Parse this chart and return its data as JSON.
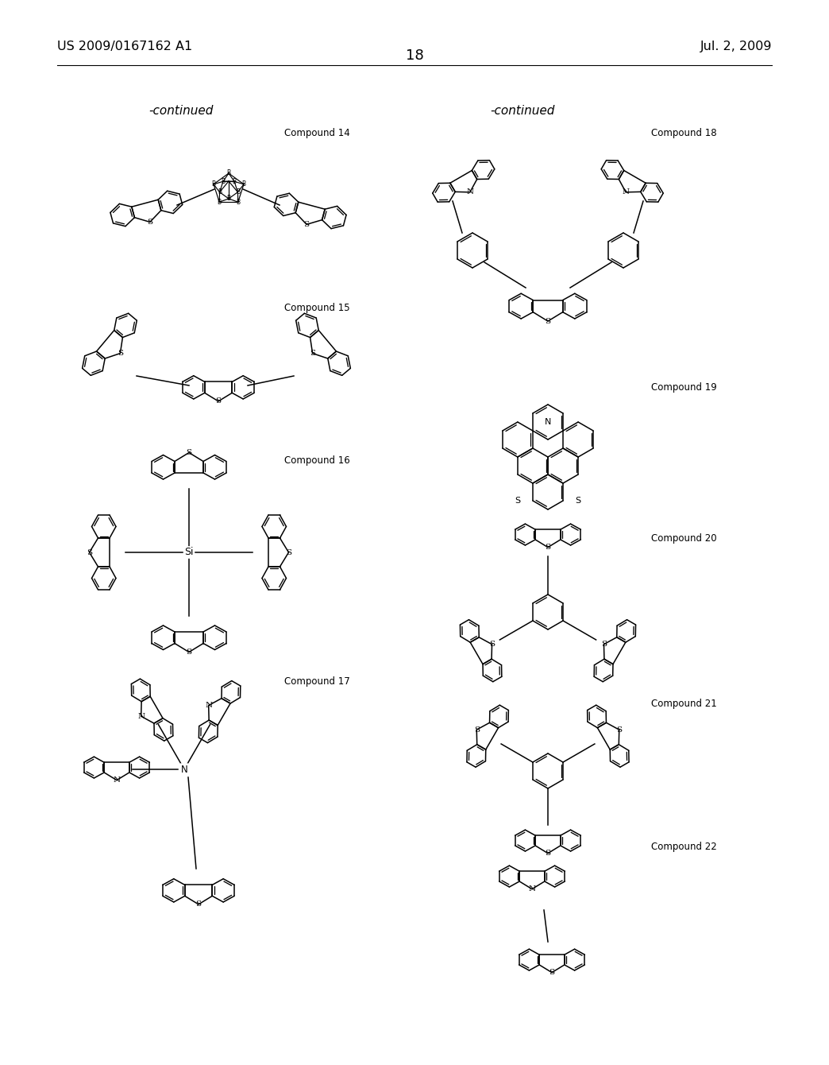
{
  "page_number": "18",
  "patent_number": "US 2009/0167162 A1",
  "date": "Jul. 2, 2009",
  "continued_left": "-continued",
  "continued_right": "-continued",
  "bg": "#ffffff",
  "lw": 1.1,
  "compound_labels": {
    "14": "Compound 14",
    "15": "Compound 15",
    "16": "Compound 16",
    "17": "Compound 17",
    "18": "Compound 18",
    "19": "Compound 19",
    "20": "Compound 20",
    "21": "Compound 21",
    "22": "Compound 22"
  }
}
